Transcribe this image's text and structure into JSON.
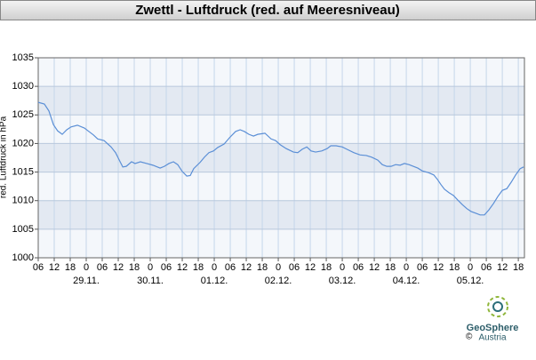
{
  "chart_data": {
    "type": "line",
    "title": "Zwettl - Luftdruck (red. auf Meeresniveau)",
    "y_label": "red. Luftdruck in hPa",
    "x": [
      0,
      2.3,
      4,
      5.7,
      7.3,
      9,
      10.7,
      12.3,
      14.7,
      17.3,
      19,
      20.7,
      22.3,
      24.7,
      27.3,
      29,
      30.7,
      31.7,
      33,
      35,
      36.3,
      38.3,
      40.7,
      43,
      45.7,
      47.3,
      49,
      50.7,
      52.3,
      54,
      55.7,
      57,
      58.3,
      60.7,
      62.3,
      64,
      65.7,
      67.3,
      69.7,
      71.7,
      74,
      75.7,
      77.3,
      79,
      80.7,
      82.3,
      85,
      87.3,
      89,
      90.7,
      93,
      95.7,
      97.3,
      99,
      100.7,
      102.3,
      104,
      106.3,
      108.3,
      109.7,
      111.7,
      114,
      115.7,
      118.3,
      120.7,
      123,
      125,
      127.3,
      129,
      130.7,
      132.3,
      134,
      135.7,
      137.3,
      139,
      140.7,
      142.3,
      144,
      146.3,
      148.3,
      149.7,
      151,
      152.3,
      154,
      155.7,
      157.3,
      159,
      160.7,
      162.3,
      164,
      165.7,
      167.3,
      169,
      170.7,
      172.3,
      174,
      175.7,
      177.3,
      179,
      180.7,
      182
    ],
    "series": [
      {
        "name": "Luftdruck",
        "color": "#5b8fd6",
        "values": [
          1027.2,
          1026.9,
          1025.7,
          1023.3,
          1022.2,
          1021.6,
          1022.4,
          1022.9,
          1023.2,
          1022.7,
          1022.1,
          1021.5,
          1020.8,
          1020.5,
          1019.4,
          1018.4,
          1016.8,
          1015.9,
          1016.0,
          1016.8,
          1016.5,
          1016.8,
          1016.5,
          1016.2,
          1015.7,
          1016.0,
          1016.5,
          1016.8,
          1016.3,
          1015.1,
          1014.3,
          1014.4,
          1015.6,
          1016.7,
          1017.6,
          1018.4,
          1018.7,
          1019.3,
          1019.9,
          1021.0,
          1022.1,
          1022.4,
          1022.1,
          1021.6,
          1021.3,
          1021.6,
          1021.8,
          1020.8,
          1020.5,
          1019.8,
          1019.1,
          1018.5,
          1018.4,
          1019.0,
          1019.4,
          1018.7,
          1018.5,
          1018.7,
          1019.1,
          1019.6,
          1019.6,
          1019.4,
          1019.0,
          1018.4,
          1018.0,
          1017.9,
          1017.6,
          1017.1,
          1016.3,
          1016.0,
          1016.0,
          1016.3,
          1016.2,
          1016.5,
          1016.3,
          1016.0,
          1015.7,
          1015.2,
          1014.9,
          1014.5,
          1013.7,
          1012.8,
          1012.0,
          1011.4,
          1010.9,
          1010.1,
          1009.3,
          1008.6,
          1008.1,
          1007.8,
          1007.5,
          1007.5,
          1008.4,
          1009.5,
          1010.7,
          1011.8,
          1012.1,
          1013.2,
          1014.5,
          1015.6,
          1015.9
        ]
      }
    ],
    "xlim": [
      0,
      182.3
    ],
    "xticks": [
      {
        "value": 0,
        "label": "06"
      },
      {
        "value": 6,
        "label": "12"
      },
      {
        "value": 12,
        "label": "18"
      },
      {
        "value": 18,
        "label": "0"
      },
      {
        "value": 24,
        "label": "06"
      },
      {
        "value": 30,
        "label": "12"
      },
      {
        "value": 36,
        "label": "18"
      },
      {
        "value": 42,
        "label": "0"
      },
      {
        "value": 48,
        "label": "06"
      },
      {
        "value": 54,
        "label": "12"
      },
      {
        "value": 60,
        "label": "18"
      },
      {
        "value": 66,
        "label": "0"
      },
      {
        "value": 72,
        "label": "06"
      },
      {
        "value": 78,
        "label": "12"
      },
      {
        "value": 84,
        "label": "18"
      },
      {
        "value": 90,
        "label": "0"
      },
      {
        "value": 96,
        "label": "06"
      },
      {
        "value": 102,
        "label": "12"
      },
      {
        "value": 108,
        "label": "18"
      },
      {
        "value": 114,
        "label": "0"
      },
      {
        "value": 120,
        "label": "06"
      },
      {
        "value": 126,
        "label": "12"
      },
      {
        "value": 132,
        "label": "18"
      },
      {
        "value": 138,
        "label": "0"
      },
      {
        "value": 144,
        "label": "06"
      },
      {
        "value": 150,
        "label": "12"
      },
      {
        "value": 156,
        "label": "18"
      },
      {
        "value": 162,
        "label": "0"
      },
      {
        "value": 168,
        "label": "06"
      },
      {
        "value": 174,
        "label": "12"
      },
      {
        "value": 180,
        "label": "18"
      }
    ],
    "date_labels": [
      {
        "value": 18,
        "label": "29.11."
      },
      {
        "value": 42,
        "label": "30.11."
      },
      {
        "value": 66,
        "label": "01.12."
      },
      {
        "value": 90,
        "label": "02.12."
      },
      {
        "value": 114,
        "label": "03.12."
      },
      {
        "value": 138,
        "label": "04.12."
      },
      {
        "value": 162,
        "label": "05.12."
      }
    ],
    "ylim": [
      1000,
      1035
    ],
    "yticks": [
      1000,
      1005,
      1010,
      1015,
      1020,
      1025,
      1030,
      1035
    ],
    "grid": true,
    "logo": {
      "name": "GeoSphere",
      "sub": "Austria",
      "copyright": "©"
    }
  }
}
